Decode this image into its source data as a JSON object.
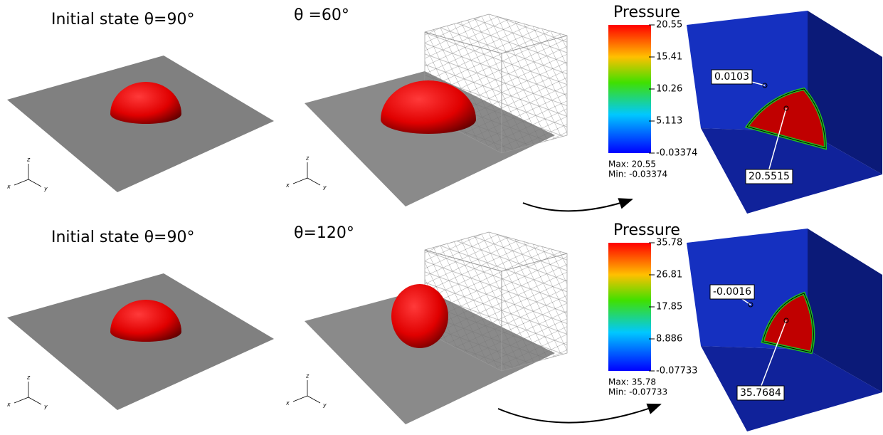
{
  "axis_labels": {
    "x": "x",
    "y": "y",
    "z": "z"
  },
  "rows": [
    {
      "initial_title": "Initial state θ=90°",
      "final_title": "θ =60°",
      "colorbar": {
        "title": "Pressure",
        "ticks": [
          "20.55",
          "15.41",
          "10.26",
          "5.113",
          "-0.03374"
        ],
        "max_label": "Max: 20.55",
        "min_label": "Min: -0.03374"
      },
      "probes": [
        "0.0103",
        "20.5515"
      ]
    },
    {
      "initial_title": "Initial state θ=90°",
      "final_title": "θ=120°",
      "colorbar": {
        "title": "Pressure",
        "ticks": [
          "35.78",
          "26.81",
          "17.85",
          "8.886",
          "-0.07733"
        ],
        "max_label": "Max: 35.78",
        "min_label": "Min: -0.07733"
      },
      "probes": [
        "-0.0016",
        "35.7684"
      ]
    }
  ]
}
